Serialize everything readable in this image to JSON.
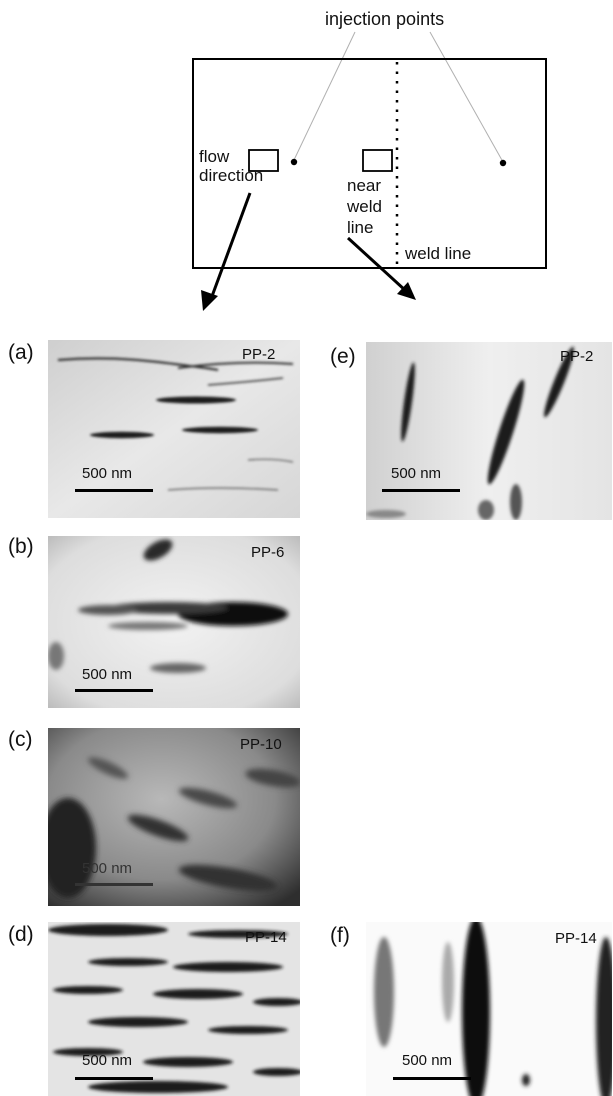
{
  "schematic": {
    "injection_label": "injection points",
    "flow_label_line1": "flow",
    "flow_label_line2": "direction",
    "near_label_line1": "near",
    "near_label_line2": "weld",
    "near_label_line3": "line",
    "weld_label": "weld line"
  },
  "panels": {
    "a": {
      "label": "(a)",
      "sample": "PP-2",
      "scale": "500 nm"
    },
    "b": {
      "label": "(b)",
      "sample": "PP-6",
      "scale": "500 nm"
    },
    "c": {
      "label": "(c)",
      "sample": "PP-10",
      "scale": "500 nm"
    },
    "d": {
      "label": "(d)",
      "sample": "PP-14",
      "scale": "500 nm"
    },
    "e": {
      "label": "(e)",
      "sample": "PP-2",
      "scale": "500 nm"
    },
    "f": {
      "label": "(f)",
      "sample": "PP-14",
      "scale": "500 nm"
    }
  }
}
